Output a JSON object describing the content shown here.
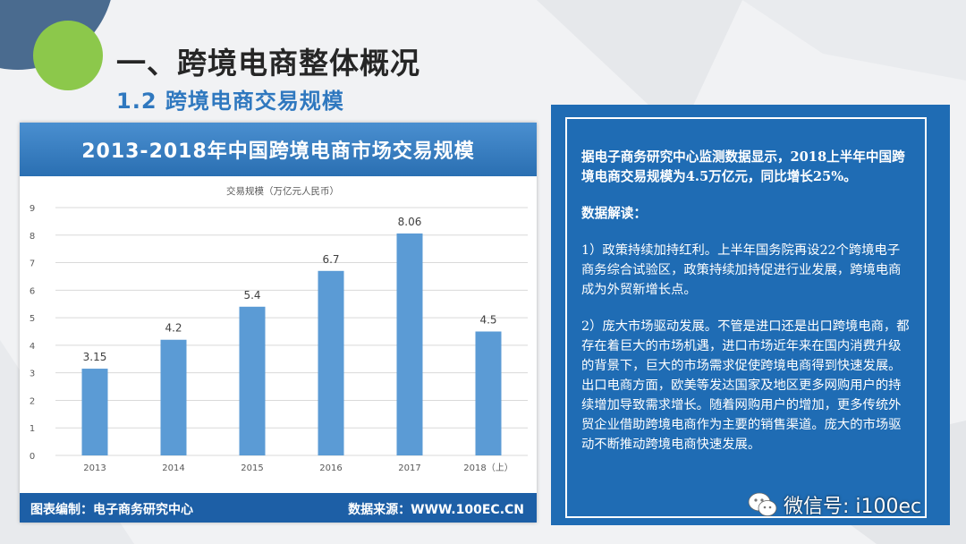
{
  "slide": {
    "title": "一、跨境电商整体概况",
    "subtitle": "1.2  跨境电商交易规模"
  },
  "chart_card": {
    "banner": "2013-2018年中国跨境电商市场交易规模",
    "footer_left": "图表编制：电子商务研究中心",
    "footer_right": "数据来源：WWW.100EC.CN"
  },
  "chart_data": {
    "type": "bar",
    "title": "交易规模（万亿元人民币）",
    "categories": [
      "2013",
      "2014",
      "2015",
      "2016",
      "2017",
      "2018（上）"
    ],
    "values": [
      3.15,
      4.2,
      5.4,
      6.7,
      8.06,
      4.5
    ],
    "value_labels": [
      "3.15",
      "4.2",
      "5.4",
      "6.7",
      "8.06",
      "4.5"
    ],
    "ylim": [
      0,
      9
    ],
    "yticks": [
      "0",
      "1",
      "2",
      "3",
      "4",
      "5",
      "6",
      "7",
      "8",
      "9"
    ],
    "grid": true,
    "legend": "none",
    "bar_color": "#5b9bd5"
  },
  "info_panel": {
    "paragraphs": [
      {
        "text": "据电子商务研究中心监测数据显示，2018上半年中国跨境电商交易规模为4.5万亿元，同比增长25%。",
        "bold": true
      },
      {
        "text": "数据解读：",
        "bold": true
      },
      {
        "text": "1）政策持续加持红利。上半年国务院再设22个跨境电子商务综合试验区，政策持续加持促进行业发展，跨境电商成为外贸新增长点。",
        "bold": false
      },
      {
        "text": "2）庞大市场驱动发展。不管是进口还是出口跨境电商，都存在着巨大的市场机遇，进口市场近年来在国内消费升级的背景下，巨大的市场需求促使跨境电商得到快速发展。出口电商方面，欧美等发达国家及地区更多网购用户的持续增加导致需求增长。随着网购用户的增加，更多传统外贸企业借助跨境电商作为主要的销售渠道。庞大的市场驱动不断推动跨境电商快速发展。",
        "bold": false
      }
    ]
  },
  "watermark": {
    "icon": "wechat-icon",
    "text": "微信号: i100ec"
  },
  "colors": {
    "accent_blue": "#1f6cb4",
    "subtitle_blue": "#2f78bf",
    "deco_green": "#8cc84b",
    "deco_navy": "#4a6b8f"
  }
}
